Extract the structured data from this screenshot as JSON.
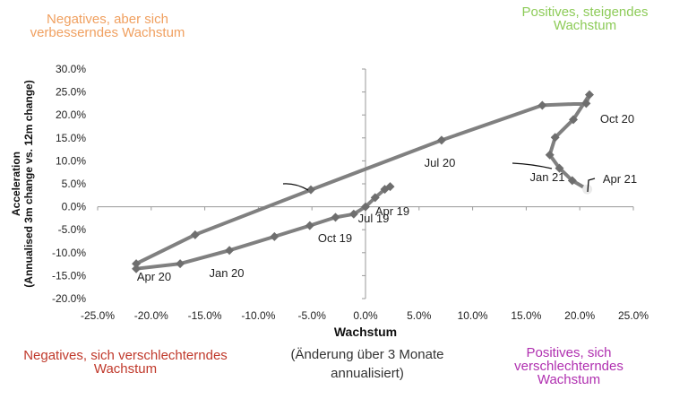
{
  "quadrants": {
    "top_left": {
      "lines": [
        "Negatives, aber sich",
        "verbesserndes Wachstum"
      ],
      "color": "#F0A060"
    },
    "top_right": {
      "lines": [
        "Positives, steigendes",
        "Wachstum"
      ],
      "color": "#8DCB58"
    },
    "bottom_left": {
      "lines": [
        "Negatives, sich verschlechterndes",
        "Wachstum"
      ],
      "color": "#C0392B"
    },
    "bottom_right": {
      "lines": [
        "Positives, sich",
        "verschlechterndes",
        "Wachstum"
      ],
      "color": "#B030B0"
    }
  },
  "x_subtitle": [
    "(Änderung über 3 Monate",
    "annualisiert)"
  ],
  "chart_data": {
    "type": "line",
    "xlabel": "Wachstum",
    "ylabel": [
      "Acceleration",
      "(Annualised 3m change vs. 12m change)"
    ],
    "xlim": [
      -25,
      25
    ],
    "ylim": [
      -20,
      30
    ],
    "x_ticks": [
      "-25.0%",
      "-20.0%",
      "-15.0%",
      "-10.0%",
      "-5.0%",
      "0.0%",
      "5.0%",
      "10.0%",
      "15.0%",
      "20.0%",
      "25.0%"
    ],
    "y_ticks": [
      "30.0%",
      "25.0%",
      "20.0%",
      "15.0%",
      "10.0%",
      "5.0%",
      "0.0%",
      "-5.0%",
      "-10.0%",
      "-15.0%",
      "-20.0%"
    ],
    "series": [
      {
        "line_color": "#808080",
        "marker_color": "#6E6E6E",
        "x": [
          2.3,
          1.8,
          0.9,
          0,
          -1.1,
          -2.8,
          -5.2,
          -8.5,
          -12.7,
          -17.3,
          -21.4,
          -21.4,
          -15.9,
          -5.1,
          7.1,
          16.5,
          20.6,
          20.9,
          19.4,
          17.7,
          17.2,
          18.1,
          19.3,
          20.7
        ],
        "y": [
          4.4,
          3.8,
          2.0,
          0,
          -1.6,
          -2.3,
          -4.1,
          -6.5,
          -9.5,
          -12.4,
          -13.5,
          -12.4,
          -6.1,
          3.7,
          14.5,
          22.1,
          22.5,
          24.4,
          19.0,
          15.1,
          11.3,
          8.4,
          5.7,
          3.8
        ]
      }
    ],
    "annotations": [
      {
        "text": "Apr 19",
        "x": 2.3,
        "y": 4.4
      },
      {
        "text": "Jul 19",
        "x": 0.9,
        "y": 2.0
      },
      {
        "text": "Oct 19",
        "x": -2.8,
        "y": -2.3
      },
      {
        "text": "Jan 20",
        "x": -12.7,
        "y": -9.5
      },
      {
        "text": "Apr 20",
        "x": -21.4,
        "y": -13.5
      },
      {
        "text": "Jul 20",
        "x": 7.1,
        "y": 14.5
      },
      {
        "text": "Oct 20",
        "x": 20.6,
        "y": 22.5
      },
      {
        "text": "Jan 21",
        "x": 17.2,
        "y": 11.3
      },
      {
        "text": "Apr 21",
        "x": 20.7,
        "y": 3.8
      }
    ],
    "grid": false,
    "legend": "none"
  }
}
